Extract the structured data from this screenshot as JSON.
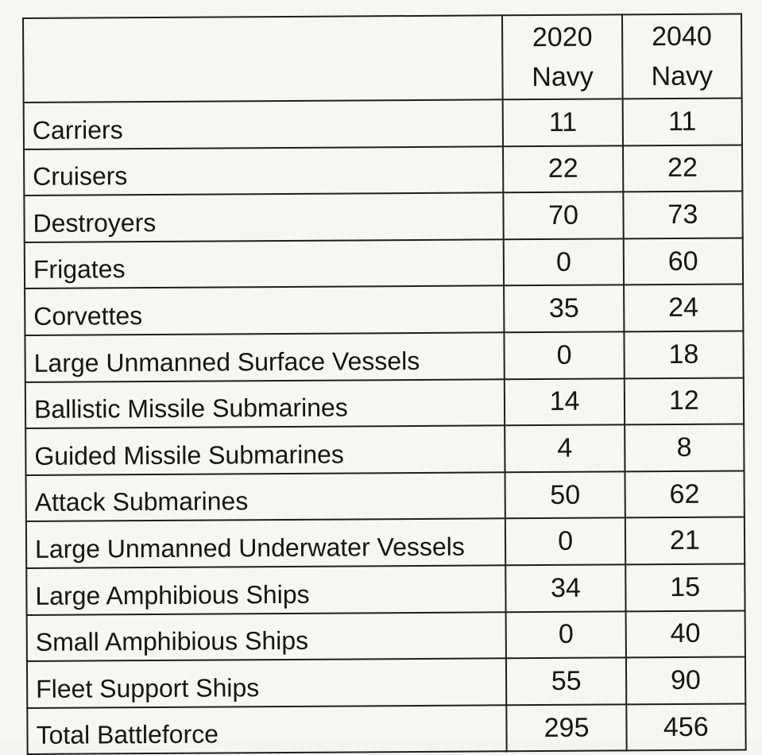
{
  "table": {
    "header": {
      "col1": [
        "2020",
        "Navy"
      ],
      "col2": [
        "2040",
        "Navy"
      ]
    },
    "rows": [
      {
        "label": "Carriers",
        "v2020": "11",
        "v2040": "11"
      },
      {
        "label": "Cruisers",
        "v2020": "22",
        "v2040": "22"
      },
      {
        "label": "Destroyers",
        "v2020": "70",
        "v2040": "73"
      },
      {
        "label": "Frigates",
        "v2020": "0",
        "v2040": "60"
      },
      {
        "label": "Corvettes",
        "v2020": "35",
        "v2040": "24"
      },
      {
        "label": "Large Unmanned Surface Vessels",
        "v2020": "0",
        "v2040": "18"
      },
      {
        "label": "Ballistic Missile Submarines",
        "v2020": "14",
        "v2040": "12"
      },
      {
        "label": "Guided Missile Submarines",
        "v2020": "4",
        "v2040": "8"
      },
      {
        "label": "Attack Submarines",
        "v2020": "50",
        "v2040": "62"
      },
      {
        "label": "Large Unmanned Underwater Vessels",
        "v2020": "0",
        "v2040": "21"
      },
      {
        "label": "Large Amphibious Ships",
        "v2020": "34",
        "v2040": "15"
      },
      {
        "label": "Small Amphibious Ships",
        "v2020": "0",
        "v2040": "40"
      },
      {
        "label": "Fleet Support Ships",
        "v2020": "55",
        "v2040": "90"
      },
      {
        "label": "Total Battleforce",
        "v2020": "295",
        "v2040": "456"
      }
    ]
  }
}
